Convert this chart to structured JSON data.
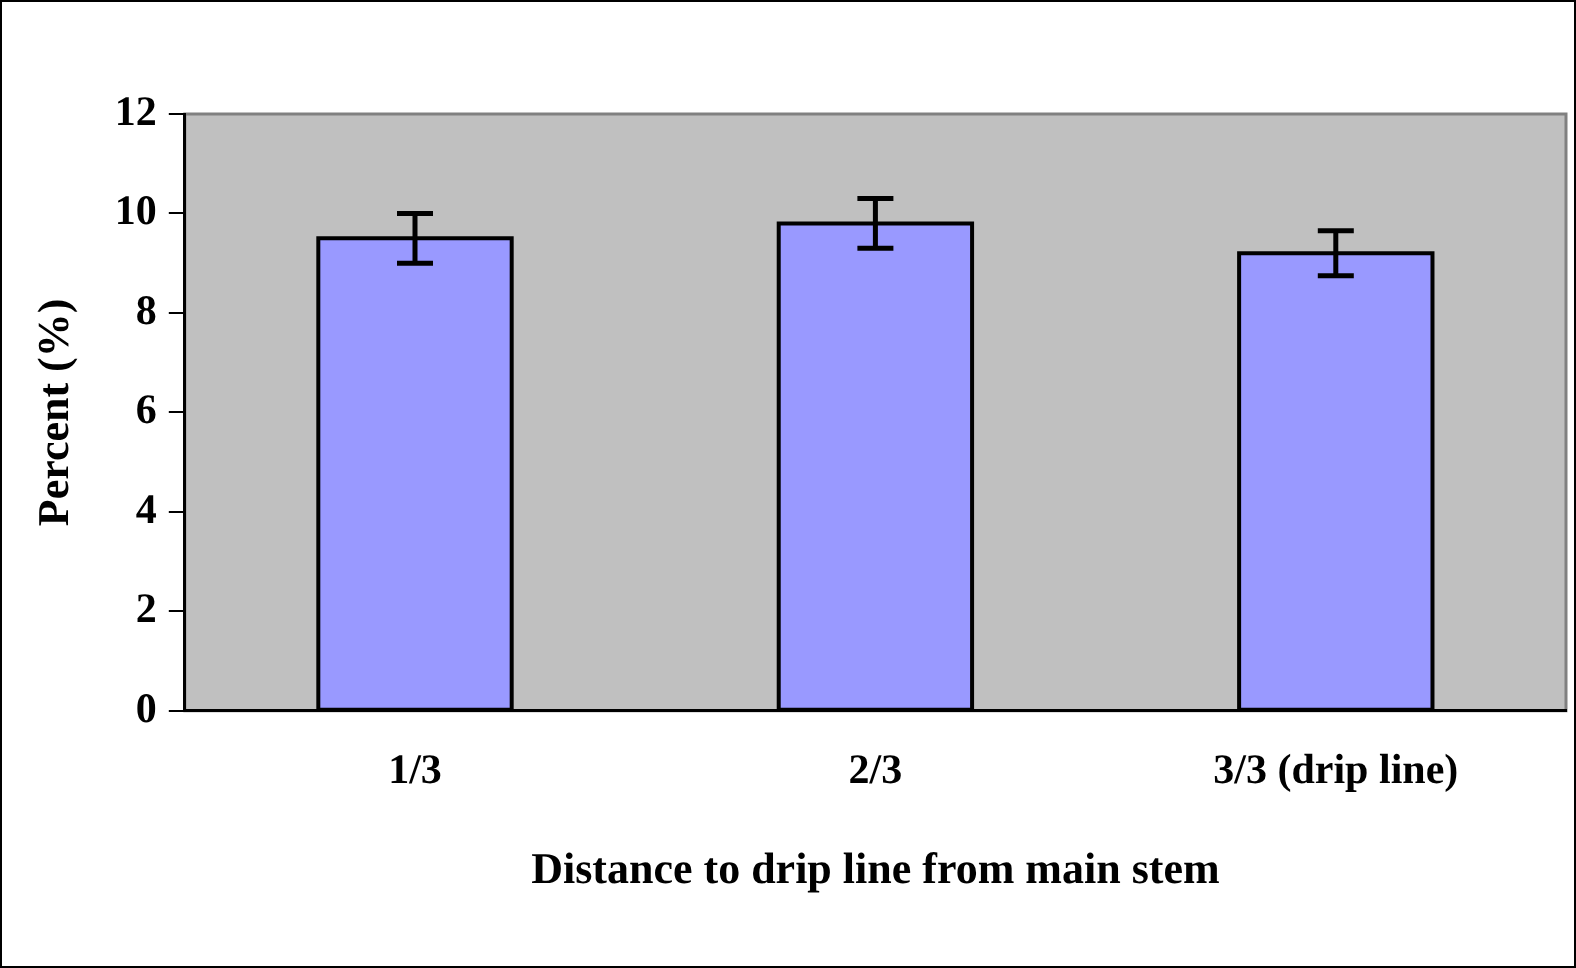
{
  "chart_data": {
    "type": "bar",
    "xlabel": "Distance to drip line from main stem",
    "ylabel": "Percent (%)",
    "categories": [
      "1/3",
      "2/3",
      "3/3 (drip line)"
    ],
    "values": [
      9.5,
      9.8,
      9.2
    ],
    "errors": [
      0.5,
      0.5,
      0.45
    ],
    "color": "#9999ff",
    "ylim": [
      0,
      12
    ],
    "yticks": [
      0,
      2,
      4,
      6,
      8,
      10,
      12
    ],
    "grid": false,
    "legend": false
  }
}
